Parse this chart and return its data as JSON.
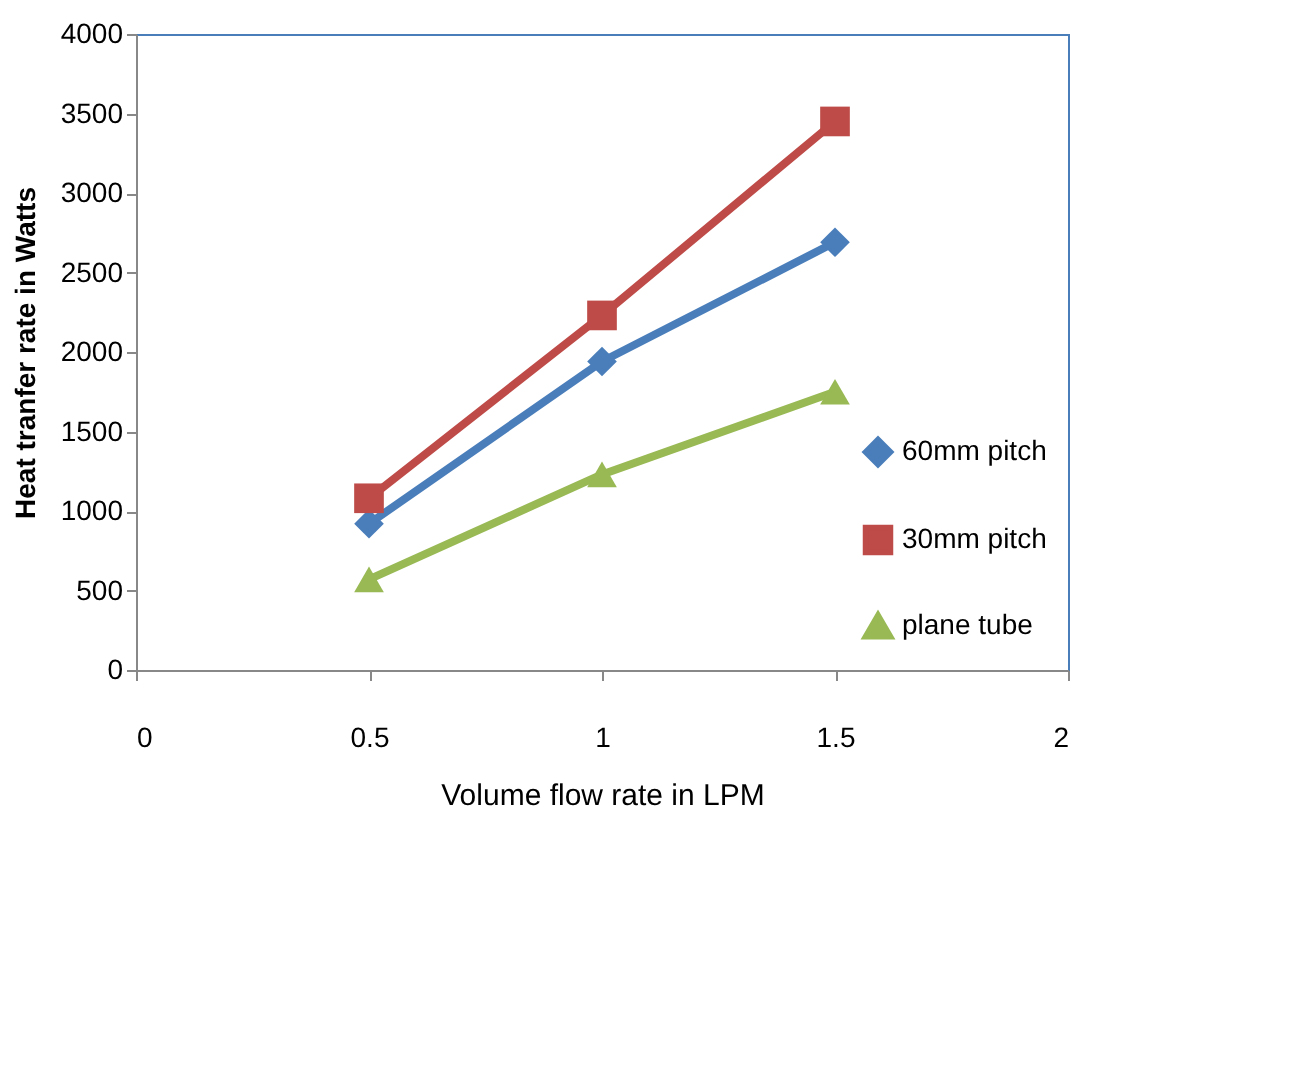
{
  "chart_data": {
    "type": "line",
    "xlabel": "Volume flow rate in LPM",
    "ylabel": "Heat tranfer rate in Watts",
    "x": [
      0.5,
      1,
      1.5
    ],
    "series": [
      {
        "name": "60mm pitch",
        "color": "#4a7ebb",
        "values": [
          920,
          1940,
          2690
        ],
        "marker": "diamond"
      },
      {
        "name": "30mm pitch",
        "color": "#be4b48",
        "values": [
          1080,
          2230,
          3450
        ],
        "marker": "square"
      },
      {
        "name": "plane tube",
        "color": "#98b954",
        "values": [
          570,
          1230,
          1750
        ],
        "marker": "triangle"
      }
    ],
    "xlim": [
      0,
      2
    ],
    "xticks": [
      0,
      0.5,
      1,
      1.5,
      2
    ],
    "ylim": [
      0,
      4000
    ],
    "yticks": [
      0,
      500,
      1000,
      1500,
      2000,
      2500,
      3000,
      3500,
      4000
    ],
    "grid": false,
    "legend": "right",
    "line_style": "solid"
  }
}
